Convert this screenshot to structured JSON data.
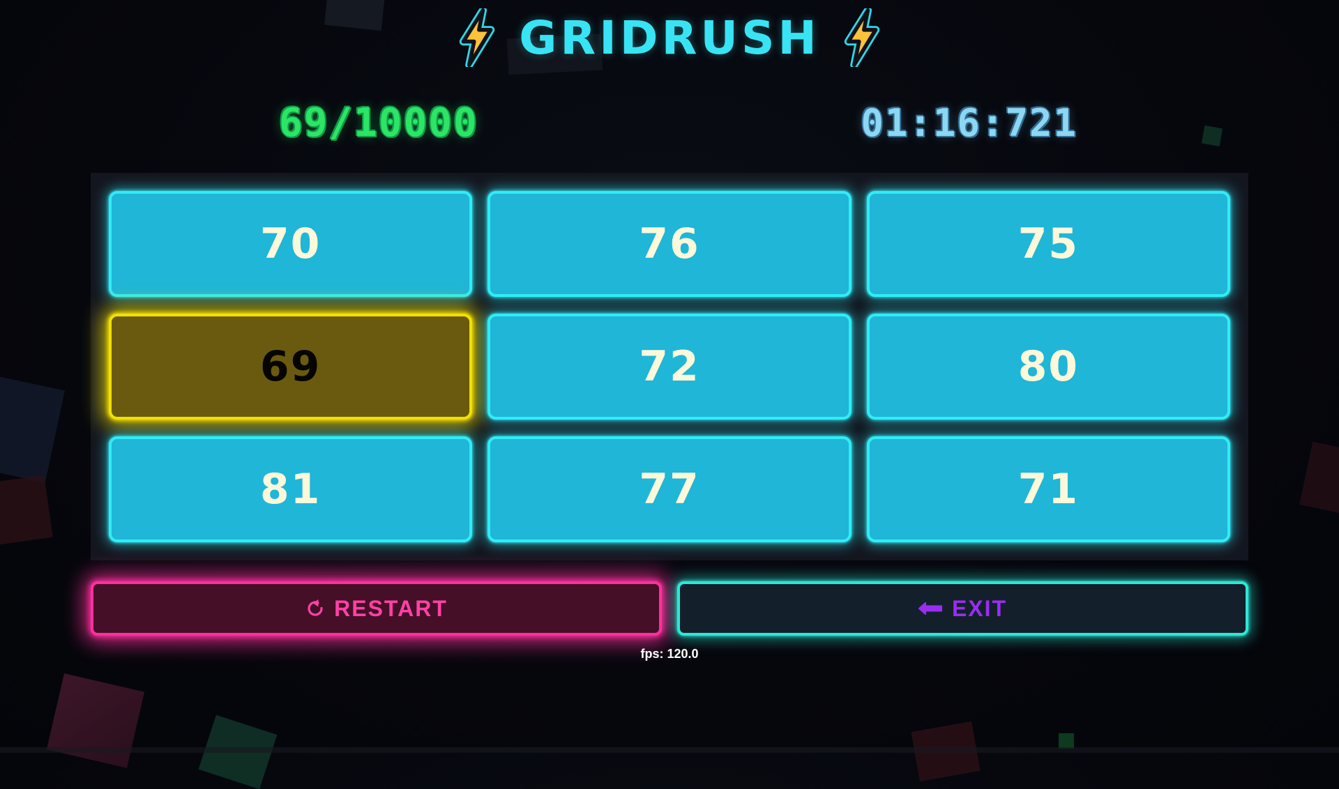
{
  "title": {
    "text": "GRIDRUSH"
  },
  "stats": {
    "score": "69/10000",
    "timer": "01:16:721"
  },
  "grid": {
    "cells": [
      {
        "label": "70",
        "active": false
      },
      {
        "label": "76",
        "active": false
      },
      {
        "label": "75",
        "active": false
      },
      {
        "label": "69",
        "active": true
      },
      {
        "label": "72",
        "active": false
      },
      {
        "label": "80",
        "active": false
      },
      {
        "label": "81",
        "active": false
      },
      {
        "label": "77",
        "active": false
      },
      {
        "label": "71",
        "active": false
      }
    ]
  },
  "controls": {
    "restart_label": "RESTART",
    "exit_label": "EXIT"
  },
  "footer": {
    "fps": "fps: 120.0"
  },
  "colors": {
    "title_cyan": "#38e4f4",
    "score_green": "#2ce567",
    "timer_blue": "#8ed7f2",
    "cell_fill": "#1fb6d7",
    "cell_border": "#30ecf7",
    "cell_text": "#fcf8da",
    "active_fill": "#6a5a0f",
    "active_border": "#f2e000",
    "restart_pink": "#ff2f9e",
    "restart_bg": "#451027",
    "exit_teal": "#2ce8d6",
    "exit_purple": "#9b2df2",
    "panel_bg": "#14161f",
    "bolt_yellow": "#fcc23a"
  }
}
